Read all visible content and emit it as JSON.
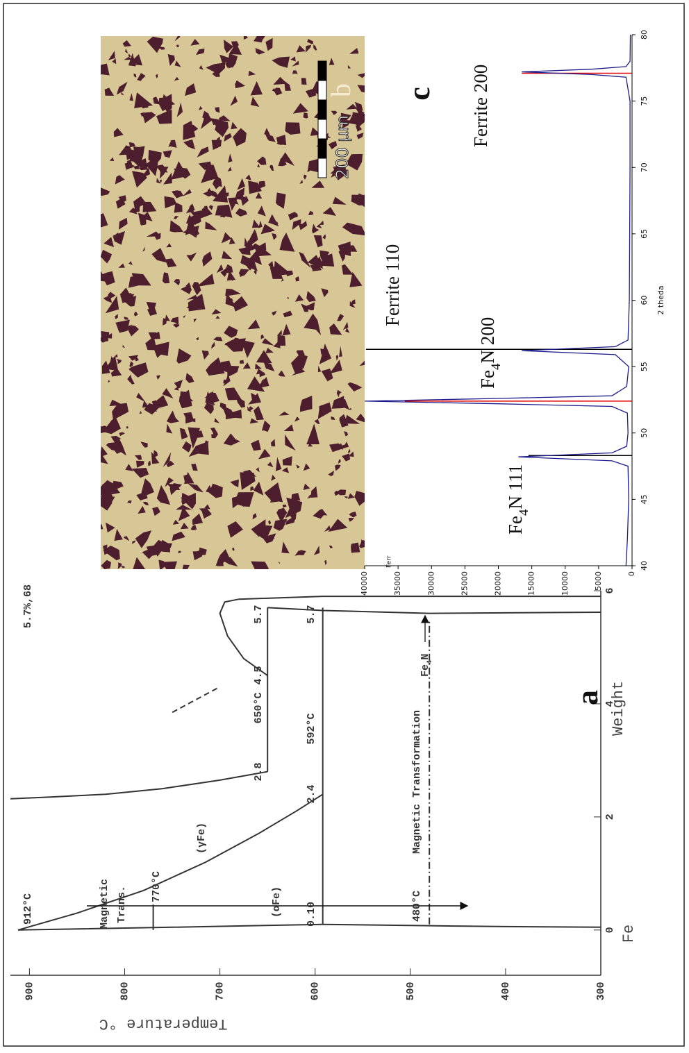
{
  "chart_data": [
    {
      "type": "phase",
      "xlabel": "Weight",
      "ylabel": "Temperature °C",
      "xlim": [
        -0.8,
        6
      ],
      "ylim": [
        300,
        920
      ],
      "xticks": [
        0,
        2,
        4,
        6
      ],
      "yticks": [
        300,
        400,
        500,
        600,
        700,
        800,
        900
      ],
      "color": "#333333",
      "curves": [
        {
          "x": [
            0,
            0.3,
            0.7,
            1.2,
            1.7,
            2.1,
            2.4
          ],
          "values": [
            912,
            850,
            780,
            715,
            660,
            620,
            592
          ],
          "style": "solid"
        },
        {
          "x": [
            2.8,
            2.65,
            2.5,
            2.4,
            2.35,
            2.32
          ],
          "values": [
            650,
            700,
            760,
            820,
            880,
            920
          ],
          "style": "solid"
        },
        {
          "x": [
            0,
            0.05,
            0.1
          ],
          "values": [
            912,
            750,
            592
          ],
          "style": "solid"
        },
        {
          "x": [
            0.1,
            0.08,
            0.06,
            0.05
          ],
          "values": [
            592,
            500,
            400,
            300
          ],
          "style": "solid"
        },
        {
          "x": [
            2.8,
            5.7
          ],
          "values": [
            650,
            650
          ],
          "style": "solid"
        },
        {
          "x": [
            0.1,
            5.7
          ],
          "values": [
            592,
            592
          ],
          "style": "solid"
        },
        {
          "x": [
            4.5,
            4.8,
            5.2,
            5.6,
            5.8,
            5.85
          ],
          "values": [
            650,
            675,
            692,
            700,
            695,
            680
          ],
          "style": "solid"
        },
        {
          "x": [
            5.7,
            5.65,
            5.6,
            5.62
          ],
          "values": [
            650,
            592,
            480,
            300
          ],
          "style": "solid"
        },
        {
          "x": [
            5.85,
            5.9,
            5.9
          ],
          "values": [
            680,
            592,
            300
          ],
          "style": "solid"
        },
        {
          "x": [
            3.85,
            4.3
          ],
          "values": [
            750,
            700
          ],
          "style": "dashed"
        },
        {
          "x": [
            0.1,
            5.5
          ],
          "values": [
            480,
            480
          ],
          "style": "dashdot"
        },
        {
          "x": [
            0,
            0.45
          ],
          "values": [
            770,
            770
          ],
          "style": "solid"
        }
      ],
      "annotations": [
        "912°C",
        "Magnetic",
        "Trans.",
        "770°C",
        "(γFe)",
        "(αFe)",
        "2.8",
        "650°C",
        "4.5",
        "5.7",
        "0.10",
        "2.4",
        "592°C",
        "5.7",
        "5.7%,68",
        "480°C",
        "Magnetic Transformation",
        {
          "parts": [
            "Fe",
            "4",
            "N"
          ]
        },
        "a",
        "Fe"
      ]
    },
    {
      "type": "line",
      "xlabel": "2 theda",
      "xlim": [
        40,
        80
      ],
      "ylim": [
        0,
        40000
      ],
      "xticks": [
        40,
        45,
        50,
        55,
        60,
        65,
        70,
        75,
        80
      ],
      "yticks": [
        0,
        5000,
        10000,
        15000,
        20000,
        25000,
        30000,
        35000,
        40000
      ],
      "series": [
        {
          "color": "#1a1a8c",
          "x": [
            40,
            42,
            45,
            47.5,
            47.9,
            48.2,
            48.5,
            49,
            50,
            51.5,
            52.0,
            52.2,
            52.4,
            52.6,
            52.8,
            53.5,
            55,
            55.9,
            56.2,
            56.5,
            57,
            60,
            65,
            70,
            75,
            76.8,
            77.0,
            77.2,
            77.4,
            77.6,
            78,
            80
          ],
          "values": [
            900,
            700,
            500,
            600,
            3000,
            17000,
            3000,
            800,
            600,
            700,
            3000,
            20000,
            40000,
            20000,
            3000,
            800,
            500,
            2500,
            16500,
            2500,
            600,
            400,
            350,
            300,
            300,
            900,
            6000,
            16500,
            6000,
            900,
            300,
            250
          ]
        }
      ],
      "sticks": [
        {
          "color": "#e00000",
          "x": [
            52.4,
            77.1
          ],
          "values": [
            34000,
            16500
          ]
        },
        {
          "color": "#000000",
          "x": [
            48.3,
            56.3
          ],
          "values": [
            15500,
            39800
          ]
        }
      ],
      "annotations": [
        "c",
        "Ferrite 110",
        {
          "parts": [
            "Fe",
            "4",
            "N 200"
          ]
        },
        {
          "parts": [
            "Fe",
            "4",
            "N 111"
          ]
        },
        "Ferrite 200",
        "Ferr"
      ]
    }
  ],
  "micrograph": {
    "label": "b",
    "scale_bar": "200 µm"
  }
}
